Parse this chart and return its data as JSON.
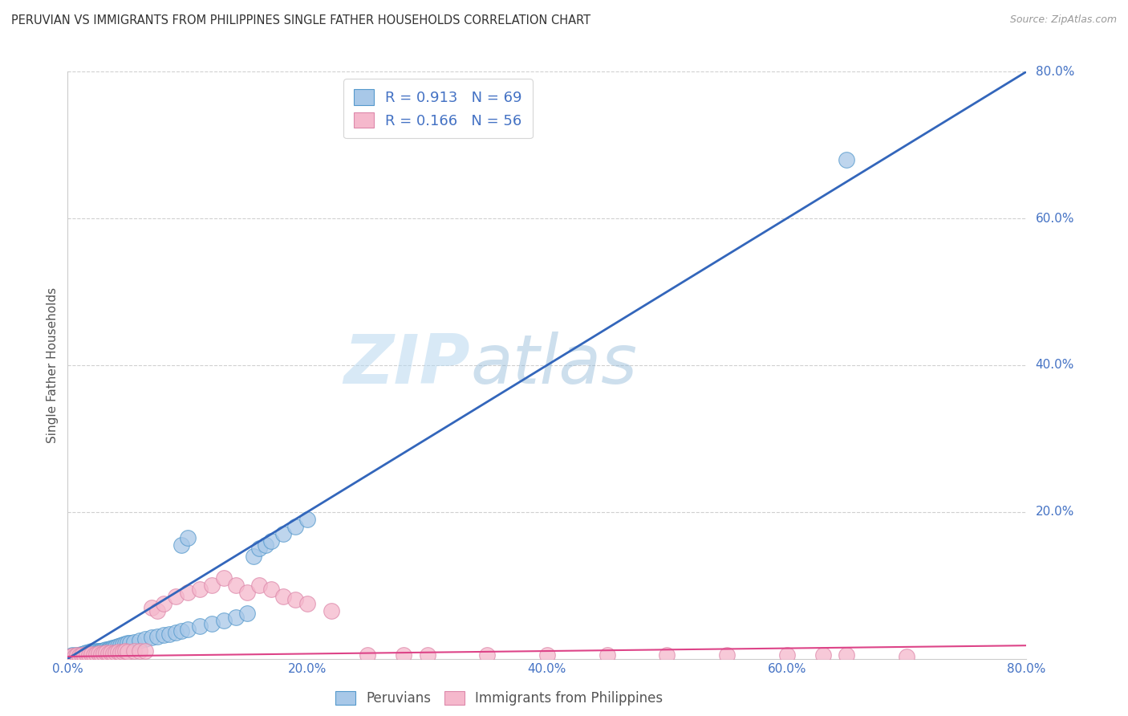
{
  "title": "PERUVIAN VS IMMIGRANTS FROM PHILIPPINES SINGLE FATHER HOUSEHOLDS CORRELATION CHART",
  "source": "Source: ZipAtlas.com",
  "ylabel": "Single Father Households",
  "xlim": [
    0,
    0.8
  ],
  "ylim": [
    0,
    0.8
  ],
  "xticks": [
    0.0,
    0.2,
    0.4,
    0.6,
    0.8
  ],
  "yticks": [
    0.2,
    0.4,
    0.6,
    0.8
  ],
  "xtick_labels": [
    "0.0%",
    "20.0%",
    "40.0%",
    "60.0%",
    "80.0%"
  ],
  "ytick_labels": [
    "20.0%",
    "40.0%",
    "60.0%",
    "80.0%"
  ],
  "grid_color": "#d0d0d0",
  "background_color": "#ffffff",
  "watermark_zip": "ZIP",
  "watermark_atlas": "atlas",
  "blue_color": "#a8c8e8",
  "blue_edge_color": "#5599cc",
  "pink_color": "#f5b8cc",
  "pink_edge_color": "#dd88aa",
  "blue_line_color": "#3366bb",
  "pink_line_color": "#dd4488",
  "legend_label1": "R = 0.913   N = 69",
  "legend_label2": "R = 0.166   N = 56",
  "series1_label": "Peruvians",
  "series2_label": "Immigrants from Philippines",
  "blue_scatter_x": [
    0.002,
    0.003,
    0.004,
    0.005,
    0.006,
    0.007,
    0.008,
    0.009,
    0.01,
    0.011,
    0.012,
    0.013,
    0.014,
    0.015,
    0.016,
    0.017,
    0.018,
    0.019,
    0.02,
    0.021,
    0.022,
    0.023,
    0.024,
    0.025,
    0.026,
    0.027,
    0.028,
    0.029,
    0.03,
    0.031,
    0.032,
    0.033,
    0.034,
    0.035,
    0.036,
    0.037,
    0.038,
    0.04,
    0.042,
    0.044,
    0.046,
    0.048,
    0.05,
    0.052,
    0.055,
    0.06,
    0.065,
    0.07,
    0.075,
    0.08,
    0.085,
    0.09,
    0.095,
    0.1,
    0.11,
    0.12,
    0.13,
    0.14,
    0.15,
    0.155,
    0.16,
    0.165,
    0.17,
    0.18,
    0.19,
    0.2,
    0.095,
    0.1,
    0.65
  ],
  "blue_scatter_y": [
    0.003,
    0.004,
    0.005,
    0.003,
    0.004,
    0.005,
    0.004,
    0.005,
    0.004,
    0.006,
    0.005,
    0.006,
    0.007,
    0.008,
    0.006,
    0.007,
    0.009,
    0.008,
    0.01,
    0.009,
    0.008,
    0.009,
    0.01,
    0.009,
    0.01,
    0.011,
    0.01,
    0.011,
    0.012,
    0.011,
    0.013,
    0.012,
    0.013,
    0.014,
    0.013,
    0.015,
    0.014,
    0.016,
    0.017,
    0.018,
    0.019,
    0.02,
    0.021,
    0.022,
    0.023,
    0.025,
    0.027,
    0.029,
    0.03,
    0.032,
    0.034,
    0.036,
    0.038,
    0.04,
    0.044,
    0.048,
    0.052,
    0.057,
    0.062,
    0.14,
    0.15,
    0.155,
    0.16,
    0.17,
    0.18,
    0.19,
    0.155,
    0.165,
    0.68
  ],
  "pink_scatter_x": [
    0.002,
    0.004,
    0.006,
    0.008,
    0.01,
    0.012,
    0.014,
    0.016,
    0.018,
    0.02,
    0.022,
    0.024,
    0.026,
    0.028,
    0.03,
    0.032,
    0.034,
    0.036,
    0.038,
    0.04,
    0.042,
    0.044,
    0.046,
    0.048,
    0.05,
    0.055,
    0.06,
    0.065,
    0.07,
    0.075,
    0.08,
    0.09,
    0.1,
    0.11,
    0.12,
    0.13,
    0.14,
    0.15,
    0.16,
    0.17,
    0.18,
    0.19,
    0.2,
    0.22,
    0.25,
    0.28,
    0.3,
    0.35,
    0.4,
    0.45,
    0.5,
    0.55,
    0.6,
    0.63,
    0.65,
    0.7
  ],
  "pink_scatter_y": [
    0.003,
    0.004,
    0.003,
    0.005,
    0.004,
    0.005,
    0.004,
    0.006,
    0.005,
    0.006,
    0.005,
    0.006,
    0.007,
    0.006,
    0.007,
    0.008,
    0.007,
    0.008,
    0.007,
    0.008,
    0.009,
    0.008,
    0.009,
    0.01,
    0.009,
    0.01,
    0.01,
    0.011,
    0.07,
    0.065,
    0.075,
    0.085,
    0.09,
    0.095,
    0.1,
    0.11,
    0.1,
    0.09,
    0.1,
    0.095,
    0.085,
    0.08,
    0.075,
    0.065,
    0.005,
    0.005,
    0.005,
    0.005,
    0.005,
    0.005,
    0.005,
    0.005,
    0.005,
    0.005,
    0.005,
    0.003
  ],
  "blue_line_x": [
    0.0,
    0.8
  ],
  "blue_line_y": [
    0.0,
    0.8
  ],
  "pink_line_x": [
    0.0,
    0.8
  ],
  "pink_line_y": [
    0.003,
    0.018
  ]
}
